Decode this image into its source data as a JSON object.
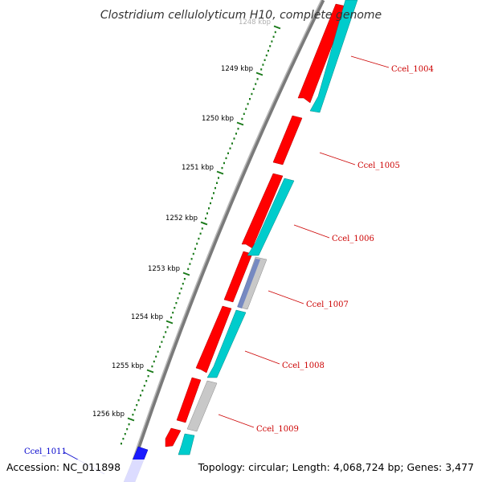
{
  "title": "Clostridium cellulolyticum H10, complete genome",
  "footer": {
    "accession": "Accession: NC_011898",
    "summary": "Topology: circular; Length: 4,068,724 bp; Genes: 3,477"
  },
  "colors": {
    "forward_cds": "#ff0000",
    "reverse_cds": "#00cccc",
    "hypothetical": "#c8c8c8",
    "highlight": "#1a1aff",
    "ticks": "#1a7a1a",
    "backbone": "#7a7a7a",
    "label_red": "#cc0000",
    "label_blue": "#0000cc"
  },
  "ticks": [
    {
      "label": "1248 kbp",
      "faded": true
    },
    {
      "label": "1249 kbp"
    },
    {
      "label": "1250 kbp"
    },
    {
      "label": "1251 kbp"
    },
    {
      "label": "1252 kbp"
    },
    {
      "label": "1253 kbp"
    },
    {
      "label": "1254 kbp"
    },
    {
      "label": "1255 kbp"
    },
    {
      "label": "1256 kbp"
    }
  ],
  "genes": [
    {
      "label": "Ccel_1004",
      "color": "label_red"
    },
    {
      "label": "Ccel_1005",
      "color": "label_red"
    },
    {
      "label": "Ccel_1006",
      "color": "label_red"
    },
    {
      "label": "Ccel_1007",
      "color": "label_red"
    },
    {
      "label": "Ccel_1008",
      "color": "label_red"
    },
    {
      "label": "Ccel_1009",
      "color": "label_red"
    },
    {
      "label": "Ccel_1011",
      "color": "label_blue"
    }
  ]
}
